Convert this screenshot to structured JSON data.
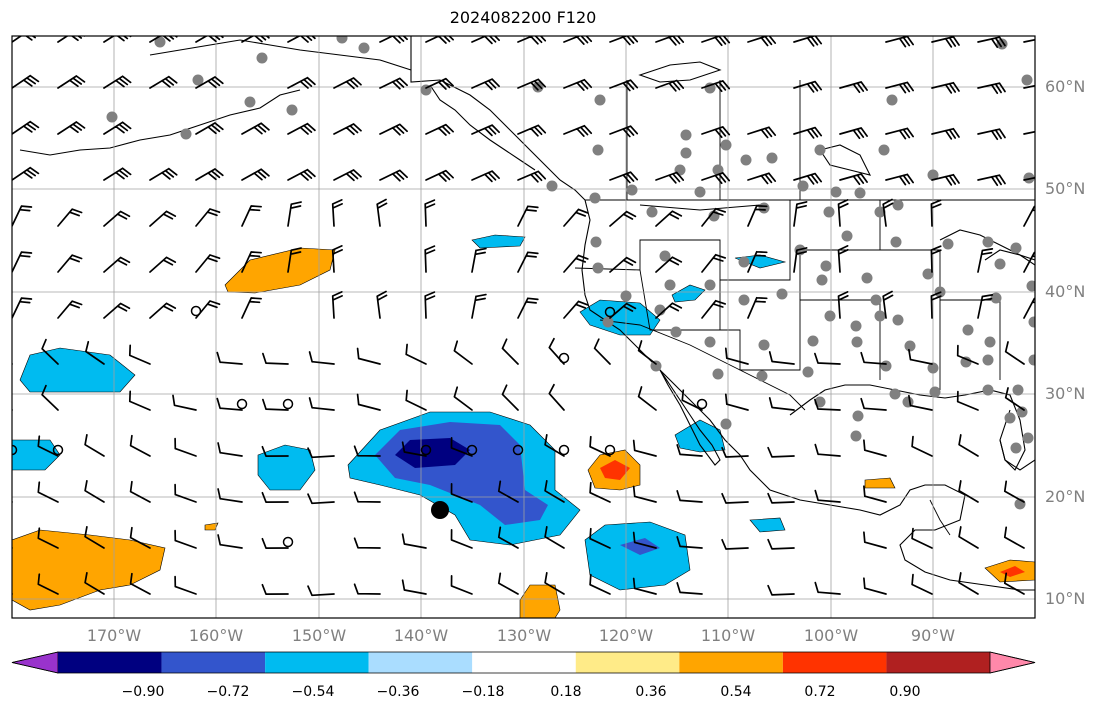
{
  "title": "2024082200 F120",
  "longitude_ticks": [
    "170°W",
    "160°W",
    "150°W",
    "140°W",
    "130°W",
    "120°W",
    "110°W",
    "100°W",
    "90°W"
  ],
  "latitude_ticks": [
    "60°N",
    "50°N",
    "40°N",
    "30°N",
    "20°N",
    "10°N"
  ],
  "colorbar": {
    "labels": [
      "−0.90",
      "−0.72",
      "−0.54",
      "−0.36",
      "−0.18",
      "0.18",
      "0.36",
      "0.54",
      "0.72",
      "0.90"
    ],
    "colors": [
      "#9933cc",
      "#000080",
      "#3355cc",
      "#00bbf0",
      "#aaddff",
      "#ffffff",
      "#ffeb88",
      "#ffa500",
      "#ff3300",
      "#b02020",
      "#ff88aa"
    ]
  }
}
